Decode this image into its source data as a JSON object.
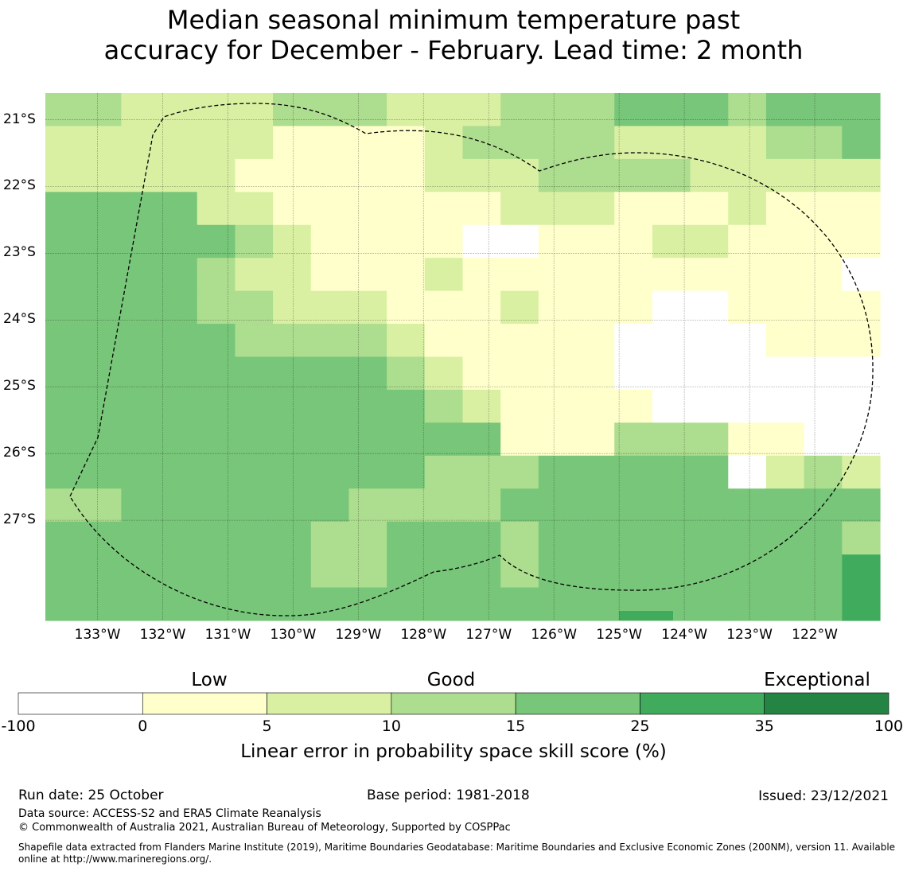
{
  "title": {
    "line1": "Median seasonal minimum temperature past",
    "line2": "accuracy for December - February. Lead time: 2 month"
  },
  "map": {
    "lon_range": [
      -133.8,
      -121.0
    ],
    "lat_range": [
      -28.5,
      -20.6
    ],
    "lat_ticks": [
      {
        "value": -21,
        "label": "21°S"
      },
      {
        "value": -22,
        "label": "22°S"
      },
      {
        "value": -23,
        "label": "23°S"
      },
      {
        "value": -24,
        "label": "24°S"
      },
      {
        "value": -25,
        "label": "25°S"
      },
      {
        "value": -26,
        "label": "26°S"
      },
      {
        "value": -27,
        "label": "27°S"
      }
    ],
    "lon_ticks": [
      {
        "value": -133,
        "label": "133°W"
      },
      {
        "value": -132,
        "label": "132°W"
      },
      {
        "value": -131,
        "label": "131°W"
      },
      {
        "value": -130,
        "label": "130°W"
      },
      {
        "value": -129,
        "label": "129°W"
      },
      {
        "value": -128,
        "label": "128°W"
      },
      {
        "value": -127,
        "label": "127°W"
      },
      {
        "value": -126,
        "label": "126°W"
      },
      {
        "value": -125,
        "label": "125°W"
      },
      {
        "value": -124,
        "label": "124°W"
      },
      {
        "value": -123,
        "label": "123°W"
      },
      {
        "value": -122,
        "label": "122°W"
      }
    ],
    "grid_legend": "0=<0 (white), 1=0–5, 2=5–10, 3=10–15, 4=15–25, 5=25–35, 6=35–100",
    "grid": [
      "3322223332223334443444",
      "2222221111233332222334",
      "2222211111222333322222",
      "4444221111112221112111",
      "4444432111100111221111",
      "4444322111211111111110",
      "4444332221112111001111",
      "4444433332111110000111",
      "4444444443211110000000",
      "4444444444321111000000",
      "4444444444441113331100",
      "4444444444333444440232",
      "3344444433334444444444",
      "4444444334443444444443",
      "4444444334443444444445",
      "4444444444444444444445"
    ]
  },
  "colorbar": {
    "headings": [
      "Low",
      "Good",
      "Exceptional"
    ],
    "bounds": [
      "-100",
      "0",
      "5",
      "10",
      "15",
      "25",
      "35",
      "100"
    ],
    "colors": [
      "#ffffff",
      "#ffffcc",
      "#d9f0a3",
      "#addd8e",
      "#78c679",
      "#41ab5d",
      "#238443"
    ],
    "label": "Linear error in probability space skill score (%)"
  },
  "footer": {
    "run_date": "Run date: 25 October",
    "base_period": "Base period: 1981-2018",
    "issued": "Issued: 23/12/2021",
    "data_source": "Data source: ACCESS-S2 and ERA5 Climate Reanalysis",
    "copyright": "© Commonwealth of Australia 2021, Australian Bureau of Meteorology, Supported by COSPPac",
    "shapefile_line1": "Shapefile data extracted from Flanders Marine Institute (2019), Maritime Boundaries Geodatabase: Maritime Boundaries and Exclusive Economic Zones (200NM), version 11. Available",
    "shapefile_line2": "online at http://www.marineregions.org/."
  }
}
